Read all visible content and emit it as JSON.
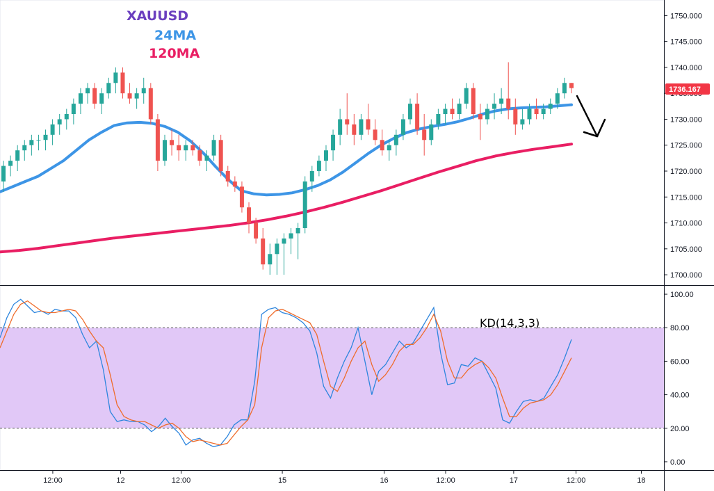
{
  "chart_data": [
    {
      "type": "candlestick",
      "symbol": "XAUUSD",
      "legend": [
        {
          "label": "XAUUSD",
          "color": "#6a3fbf"
        },
        {
          "label": "24MA",
          "color": "#3d95e6"
        },
        {
          "label": "120MA",
          "color": "#e91e63"
        }
      ],
      "ylim": [
        1698,
        1753
      ],
      "y_ticks": [
        "1750.000",
        "1745.000",
        "1740.000",
        "1735.000",
        "1730.000",
        "1725.000",
        "1720.000",
        "1715.000",
        "1710.000",
        "1705.000",
        "1700.000"
      ],
      "y_tick_values": [
        1750,
        1745,
        1740,
        1735,
        1730,
        1725,
        1720,
        1715,
        1710,
        1705,
        1700
      ],
      "last_price": {
        "value": 1736.167,
        "label": "1736.167",
        "color": "#f23645"
      },
      "up_color": "#26a69a",
      "down_color": "#ef5350",
      "candles": [
        [
          1718,
          1722,
          1716,
          1721
        ],
        [
          1721,
          1723,
          1719,
          1722
        ],
        [
          1722,
          1725,
          1720,
          1724
        ],
        [
          1724,
          1726,
          1722,
          1725
        ],
        [
          1725,
          1727,
          1723,
          1726
        ],
        [
          1726,
          1727,
          1724,
          1726
        ],
        [
          1726,
          1728,
          1724,
          1727
        ],
        [
          1727,
          1730,
          1725,
          1729
        ],
        [
          1729,
          1731,
          1727,
          1730
        ],
        [
          1730,
          1732,
          1728,
          1731
        ],
        [
          1731,
          1734,
          1729,
          1733
        ],
        [
          1733,
          1736,
          1731,
          1735
        ],
        [
          1735,
          1737,
          1733,
          1736
        ],
        [
          1736,
          1737,
          1732,
          1733
        ],
        [
          1733,
          1736,
          1731,
          1735
        ],
        [
          1735,
          1738,
          1734,
          1737
        ],
        [
          1737,
          1740,
          1735,
          1739
        ],
        [
          1739,
          1740,
          1734,
          1735
        ],
        [
          1735,
          1737,
          1733,
          1734
        ],
        [
          1734,
          1736,
          1732,
          1735
        ],
        [
          1735,
          1738,
          1733,
          1736
        ],
        [
          1736,
          1737,
          1729,
          1730
        ],
        [
          1730,
          1731,
          1720,
          1722
        ],
        [
          1722,
          1727,
          1721,
          1726
        ],
        [
          1726,
          1728,
          1723,
          1725
        ],
        [
          1725,
          1727,
          1722,
          1724
        ],
        [
          1724,
          1726,
          1722,
          1725
        ],
        [
          1725,
          1726,
          1723,
          1724
        ],
        [
          1724,
          1725,
          1721,
          1722
        ],
        [
          1722,
          1724,
          1720,
          1723
        ],
        [
          1723,
          1727,
          1722,
          1726
        ],
        [
          1726,
          1727,
          1719,
          1720
        ],
        [
          1720,
          1721,
          1717,
          1718
        ],
        [
          1718,
          1719,
          1716,
          1717
        ],
        [
          1717,
          1718,
          1712,
          1713
        ],
        [
          1713,
          1714,
          1708,
          1710
        ],
        [
          1710,
          1711,
          1706,
          1707
        ],
        [
          1707,
          1709,
          1701,
          1702
        ],
        [
          1702,
          1706,
          1700,
          1704
        ],
        [
          1704,
          1707,
          1700,
          1706
        ],
        [
          1706,
          1708,
          1700,
          1707
        ],
        [
          1707,
          1709,
          1704,
          1708
        ],
        [
          1708,
          1710,
          1703,
          1709
        ],
        [
          1709,
          1719,
          1708,
          1718
        ],
        [
          1718,
          1721,
          1716,
          1720
        ],
        [
          1720,
          1723,
          1719,
          1722
        ],
        [
          1722,
          1725,
          1720,
          1724
        ],
        [
          1724,
          1728,
          1722,
          1727
        ],
        [
          1727,
          1732,
          1725,
          1730
        ],
        [
          1730,
          1735,
          1727,
          1729
        ],
        [
          1729,
          1731,
          1725,
          1727
        ],
        [
          1727,
          1731,
          1726,
          1730
        ],
        [
          1730,
          1733,
          1727,
          1728
        ],
        [
          1728,
          1730,
          1725,
          1726
        ],
        [
          1726,
          1728,
          1723,
          1724
        ],
        [
          1724,
          1726,
          1722,
          1725
        ],
        [
          1725,
          1728,
          1723,
          1727
        ],
        [
          1727,
          1731,
          1726,
          1730
        ],
        [
          1730,
          1734,
          1729,
          1733
        ],
        [
          1733,
          1735,
          1727,
          1728
        ],
        [
          1728,
          1731,
          1723,
          1726
        ],
        [
          1726,
          1730,
          1725,
          1729
        ],
        [
          1729,
          1732,
          1728,
          1731
        ],
        [
          1731,
          1733,
          1729,
          1732
        ],
        [
          1732,
          1734,
          1730,
          1731
        ],
        [
          1731,
          1734,
          1730,
          1733
        ],
        [
          1733,
          1737,
          1732,
          1736
        ],
        [
          1736,
          1737,
          1730,
          1731
        ],
        [
          1731,
          1733,
          1726,
          1730
        ],
        [
          1730,
          1733,
          1729,
          1732
        ],
        [
          1732,
          1735,
          1730,
          1733
        ],
        [
          1733,
          1736,
          1731,
          1734
        ],
        [
          1734,
          1741,
          1730,
          1732
        ],
        [
          1732,
          1734,
          1727,
          1729
        ],
        [
          1729,
          1732,
          1728,
          1730
        ],
        [
          1730,
          1733,
          1729,
          1732
        ],
        [
          1732,
          1734,
          1730,
          1731
        ],
        [
          1731,
          1733,
          1730,
          1732
        ],
        [
          1732,
          1734,
          1731,
          1733
        ],
        [
          1733,
          1736,
          1732,
          1735
        ],
        [
          1735,
          1738,
          1734,
          1737
        ],
        [
          1737,
          1737,
          1735,
          1736
        ]
      ],
      "ma24": [
        1716,
        1717,
        1718,
        1719,
        1720.5,
        1722,
        1724,
        1726,
        1727.5,
        1728.8,
        1729.3,
        1729.4,
        1729.2,
        1728.6,
        1727.5,
        1725.8,
        1723.5,
        1720.8,
        1718.3,
        1716.2,
        1715.6,
        1715.4,
        1715.5,
        1715.8,
        1716.4,
        1717.2,
        1718.3,
        1719.8,
        1721.6,
        1723.4,
        1725,
        1726.3,
        1727.4,
        1728.1,
        1728.6,
        1729,
        1729.5,
        1730.2,
        1731,
        1731.6,
        1732,
        1732.2,
        1732.3,
        1732.4,
        1732.6,
        1732.8
      ],
      "ma120": [
        1704.4,
        1704.7,
        1705.1,
        1705.6,
        1706.1,
        1706.6,
        1707.1,
        1707.5,
        1707.9,
        1708.3,
        1708.7,
        1709.1,
        1709.5,
        1710,
        1710.6,
        1711.3,
        1712.1,
        1713,
        1714,
        1715.1,
        1716.2,
        1717.4,
        1718.6,
        1719.8,
        1720.9,
        1722,
        1722.9,
        1723.6,
        1724.2,
        1724.7,
        1725.2
      ]
    },
    {
      "type": "line",
      "title": "KD(14,3,3)",
      "ylim": [
        -5,
        105
      ],
      "y_ticks": [
        "100.00",
        "80.00",
        "60.00",
        "40.00",
        "20.00",
        "0.00"
      ],
      "y_tick_values": [
        100,
        80,
        60,
        40,
        20,
        0
      ],
      "band": {
        "from": 20,
        "to": 80,
        "color": "#e1c8f7"
      },
      "series": [
        {
          "color": "#2e86de",
          "values": [
            74,
            86,
            94,
            97,
            93,
            89,
            90,
            88,
            91,
            90,
            90,
            86,
            76,
            68,
            72,
            55,
            30,
            24,
            25,
            24,
            24,
            22,
            18,
            21,
            26,
            21,
            17,
            10,
            13,
            14,
            11,
            9,
            10,
            15,
            22,
            25,
            25,
            48,
            88,
            91,
            92,
            89,
            88,
            86,
            83,
            78,
            65,
            45,
            38,
            50,
            60,
            68,
            80,
            60,
            40,
            54,
            58,
            65,
            72,
            68,
            71,
            78,
            85,
            92,
            65,
            46,
            47,
            58,
            57,
            62,
            60,
            52,
            44,
            25,
            23,
            30,
            36,
            37,
            36,
            38,
            45,
            52,
            62,
            73
          ]
        },
        {
          "color": "#ef6c2b",
          "values": [
            68,
            78,
            88,
            94,
            96,
            93,
            90,
            89,
            89,
            90,
            91,
            90,
            85,
            78,
            72,
            68,
            52,
            34,
            27,
            25,
            24,
            24,
            22,
            20,
            22,
            23,
            20,
            15,
            12,
            13,
            12,
            11,
            10,
            11,
            16,
            21,
            25,
            34,
            68,
            86,
            90,
            91,
            89,
            87,
            85,
            83,
            76,
            60,
            45,
            42,
            50,
            60,
            68,
            72,
            58,
            48,
            52,
            58,
            66,
            70,
            70,
            74,
            80,
            88,
            78,
            60,
            50,
            50,
            55,
            58,
            60,
            56,
            50,
            38,
            27,
            27,
            32,
            35,
            36,
            37,
            40,
            46,
            54,
            62
          ]
        }
      ]
    }
  ],
  "x_ticks": [
    {
      "label": "12:00",
      "pos": 0.0795
    },
    {
      "label": "12",
      "pos": 0.1817
    },
    {
      "label": "12:00",
      "pos": 0.2728
    },
    {
      "label": "15",
      "pos": 0.4252
    },
    {
      "label": "16",
      "pos": 0.5786
    },
    {
      "label": "12:00",
      "pos": 0.6712
    },
    {
      "label": "17",
      "pos": 0.7737
    },
    {
      "label": "12:00",
      "pos": 0.8676
    },
    {
      "label": "18",
      "pos": 0.9659
    }
  ]
}
